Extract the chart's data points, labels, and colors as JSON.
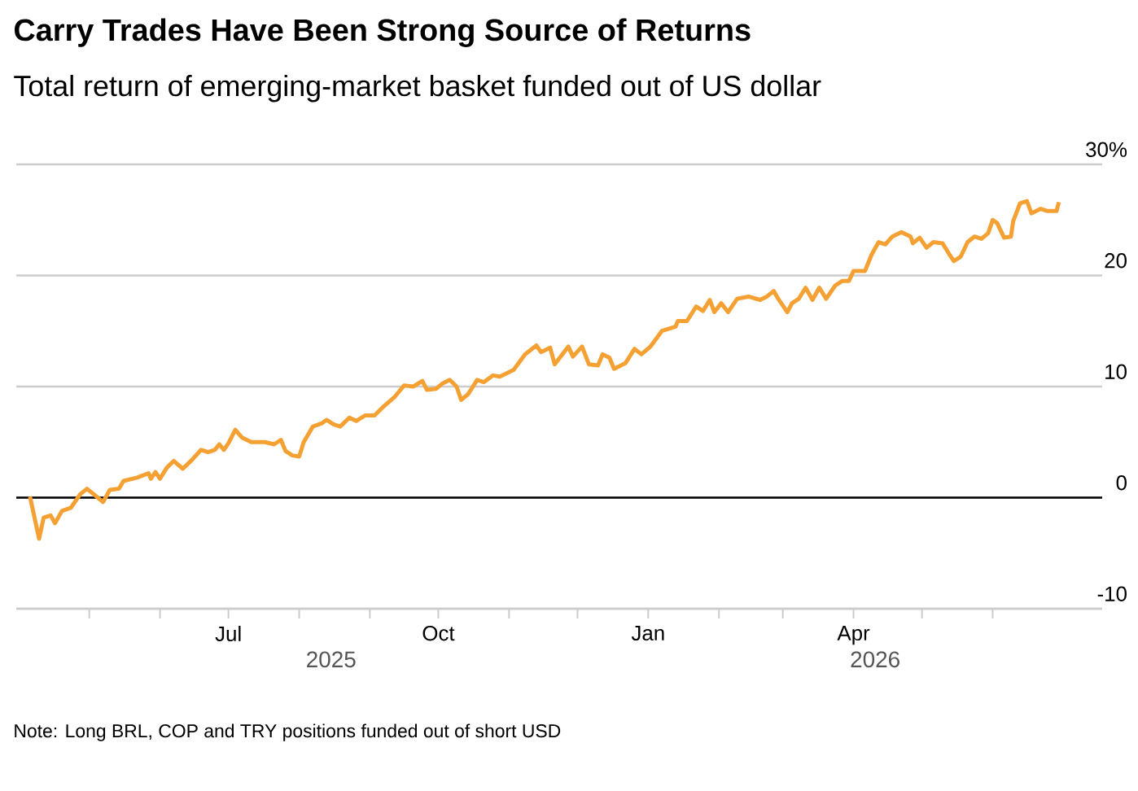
{
  "chart_data": {
    "type": "line",
    "title": "Carry Trades Have Been Strong Source of Returns",
    "subtitle": "Total return of emerging-market basket funded out of US dollar",
    "color": "#f5a032",
    "x": [
      "2025-04-05",
      "2025-04-09",
      "2025-04-11",
      "2025-04-14",
      "2025-04-16",
      "2025-04-19",
      "2025-04-23",
      "2025-04-27",
      "2025-04-30",
      "2025-05-03",
      "2025-05-07",
      "2025-05-10",
      "2025-05-14",
      "2025-05-16",
      "2025-05-22",
      "2025-05-27",
      "2025-05-28",
      "2025-05-30",
      "2025-06-01",
      "2025-06-04",
      "2025-06-07",
      "2025-06-11",
      "2025-06-15",
      "2025-06-19",
      "2025-06-22",
      "2025-06-25",
      "2025-06-27",
      "2025-06-29",
      "2025-07-01",
      "2025-07-04",
      "2025-07-07",
      "2025-07-11",
      "2025-07-17",
      "2025-07-21",
      "2025-07-24",
      "2025-07-26",
      "2025-07-29",
      "2025-08-01",
      "2025-08-03",
      "2025-08-07",
      "2025-08-11",
      "2025-08-13",
      "2025-08-16",
      "2025-08-19",
      "2025-08-23",
      "2025-08-26",
      "2025-08-30",
      "2025-09-03",
      "2025-09-07",
      "2025-09-12",
      "2025-09-16",
      "2025-09-20",
      "2025-09-24",
      "2025-09-26",
      "2025-09-30",
      "2025-10-03",
      "2025-10-06",
      "2025-10-09",
      "2025-10-11",
      "2025-10-14",
      "2025-10-18",
      "2025-10-21",
      "2025-10-25",
      "2025-10-28",
      "2025-11-03",
      "2025-11-08",
      "2025-11-13",
      "2025-11-15",
      "2025-11-19",
      "2025-11-21",
      "2025-11-27",
      "2025-11-29",
      "2025-12-03",
      "2025-12-06",
      "2025-12-10",
      "2025-12-12",
      "2025-12-15",
      "2025-12-17",
      "2025-12-22",
      "2025-12-26",
      "2025-12-29",
      "2026-01-02",
      "2026-01-07",
      "2026-01-13",
      "2026-01-14",
      "2026-01-18",
      "2026-01-22",
      "2026-01-25",
      "2026-01-28",
      "2026-01-30",
      "2026-02-02",
      "2026-02-05",
      "2026-02-09",
      "2026-02-14",
      "2026-02-19",
      "2026-02-22",
      "2026-02-25",
      "2026-02-27",
      "2026-03-03",
      "2026-03-05",
      "2026-03-08",
      "2026-03-11",
      "2026-03-14",
      "2026-03-17",
      "2026-03-20",
      "2026-03-24",
      "2026-03-27",
      "2026-03-30",
      "2026-04-01",
      "2026-04-06",
      "2026-04-09",
      "2026-04-12",
      "2026-04-15",
      "2026-04-18",
      "2026-04-22",
      "2026-04-26",
      "2026-04-27",
      "2026-04-30",
      "2026-05-03",
      "2026-05-06",
      "2026-05-10",
      "2026-05-13",
      "2026-05-15",
      "2026-05-18",
      "2026-05-21",
      "2026-05-24",
      "2026-05-27",
      "2026-05-30",
      "2026-06-01",
      "2026-06-03",
      "2026-06-06",
      "2026-06-09",
      "2026-06-10",
      "2026-06-13",
      "2026-06-16",
      "2026-06-18",
      "2026-06-22",
      "2026-06-25",
      "2026-06-29",
      "2026-06-30"
    ],
    "values": [
      0.1,
      -3.7,
      -1.8,
      -1.6,
      -2.3,
      -1.2,
      -0.9,
      0.3,
      0.8,
      0.3,
      -0.4,
      0.7,
      0.8,
      1.5,
      1.8,
      2.2,
      1.7,
      2.3,
      1.7,
      2.7,
      3.3,
      2.6,
      3.4,
      4.3,
      4.1,
      4.3,
      4.8,
      4.3,
      4.9,
      6.1,
      5.4,
      5.0,
      5.0,
      4.8,
      5.2,
      4.2,
      3.8,
      3.7,
      5.0,
      6.4,
      6.7,
      7.0,
      6.6,
      6.4,
      7.2,
      6.9,
      7.4,
      7.4,
      8.2,
      9.1,
      10.1,
      10.0,
      10.5,
      9.7,
      9.8,
      10.3,
      10.6,
      10.0,
      8.8,
      9.3,
      10.6,
      10.4,
      11.0,
      10.9,
      11.5,
      12.9,
      13.7,
      13.1,
      13.5,
      12.0,
      13.6,
      12.7,
      13.6,
      12.0,
      11.9,
      12.9,
      12.6,
      11.6,
      12.1,
      13.4,
      12.9,
      13.6,
      15.0,
      15.4,
      15.9,
      15.9,
      17.2,
      16.8,
      17.8,
      16.7,
      17.5,
      16.7,
      17.9,
      18.1,
      17.8,
      18.1,
      18.6,
      17.9,
      16.7,
      17.5,
      17.9,
      18.9,
      17.8,
      18.9,
      17.9,
      19.1,
      19.5,
      19.5,
      20.4,
      20.4,
      21.9,
      23.0,
      22.8,
      23.5,
      23.9,
      23.5,
      22.9,
      23.4,
      22.5,
      23.0,
      22.9,
      21.9,
      21.3,
      21.7,
      23.0,
      23.5,
      23.3,
      23.8,
      25.0,
      24.7,
      23.4,
      23.5,
      24.9,
      26.5,
      26.7,
      25.6,
      26.0,
      25.8,
      25.8,
      26.6
    ],
    "xlim": [
      "2025-03-30",
      "2026-07-19"
    ],
    "xticks": [
      {
        "value": "2025-05-01",
        "label": null
      },
      {
        "value": "2025-06-01",
        "label": null
      },
      {
        "value": "2025-07-01",
        "label": "Jul"
      },
      {
        "value": "2025-08-01",
        "label": null
      },
      {
        "value": "2025-09-01",
        "label": null
      },
      {
        "value": "2025-10-01",
        "label": "Oct"
      },
      {
        "value": "2025-11-01",
        "label": null
      },
      {
        "value": "2025-12-01",
        "label": null
      },
      {
        "value": "2026-01-01",
        "label": "Jan"
      },
      {
        "value": "2026-02-01",
        "label": null
      },
      {
        "value": "2026-03-01",
        "label": null
      },
      {
        "value": "2026-04-01",
        "label": "Apr"
      },
      {
        "value": "2026-05-01",
        "label": null
      },
      {
        "value": "2026-06-01",
        "label": null
      }
    ],
    "ylim": [
      -10,
      30
    ],
    "yticks": [
      -10,
      0,
      10,
      20,
      {
        "value": 30,
        "label": "30%"
      }
    ],
    "grid": "y",
    "ref_lines": [
      {
        "axis": "y",
        "value": 0,
        "color": "#000000"
      }
    ],
    "annotations": [
      "2025",
      "2026",
      "Note: Long BRL, COP and TRY positions funded out of short USD"
    ]
  }
}
